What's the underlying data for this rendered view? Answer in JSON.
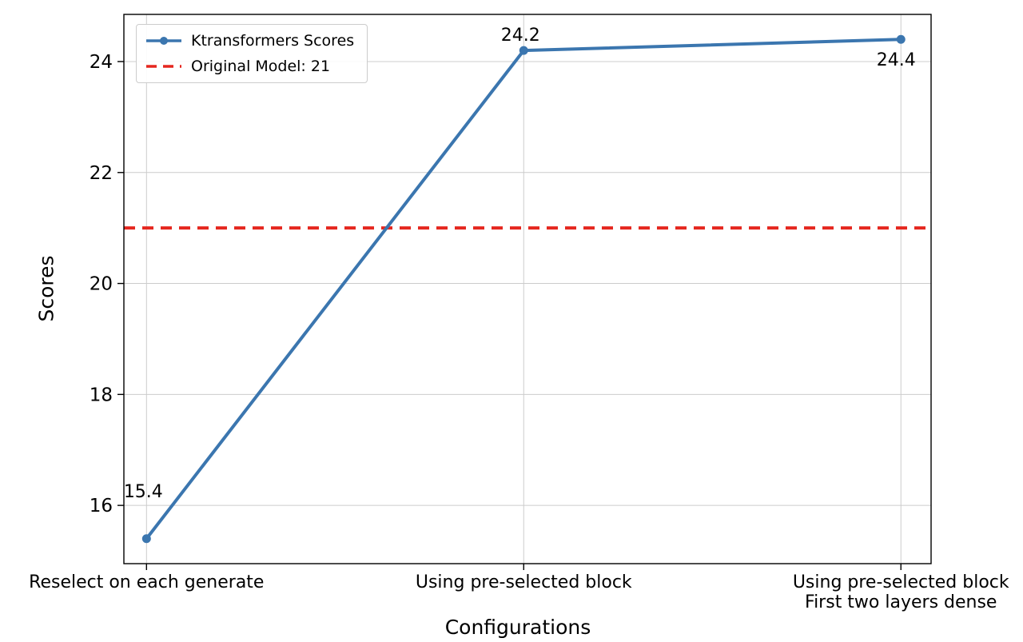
{
  "chart_data": {
    "type": "line",
    "title": "",
    "xlabel": "Configurations",
    "ylabel": "Scores",
    "categories": [
      "Reselect on each generate",
      "Using pre-selected block",
      "Using pre-selected block\nFirst two layers dense"
    ],
    "series": [
      {
        "name": "Ktransformers Scores",
        "values": [
          15.4,
          24.2,
          24.4
        ],
        "color": "#3b76af",
        "marker": "circle",
        "line_style": "solid"
      }
    ],
    "reference_line": {
      "label": "Original Model: 21",
      "value": 21,
      "color": "#e5271f",
      "line_style": "dashed"
    },
    "annotations": [
      "15.4",
      "24.2",
      "24.4"
    ],
    "yticks": [
      16,
      18,
      20,
      22,
      24
    ],
    "ylim": [
      14.95,
      24.85
    ],
    "xlim": [
      -0.06,
      2.08
    ],
    "grid": true,
    "grid_color": "#cccccc",
    "legend_position": "upper left"
  }
}
